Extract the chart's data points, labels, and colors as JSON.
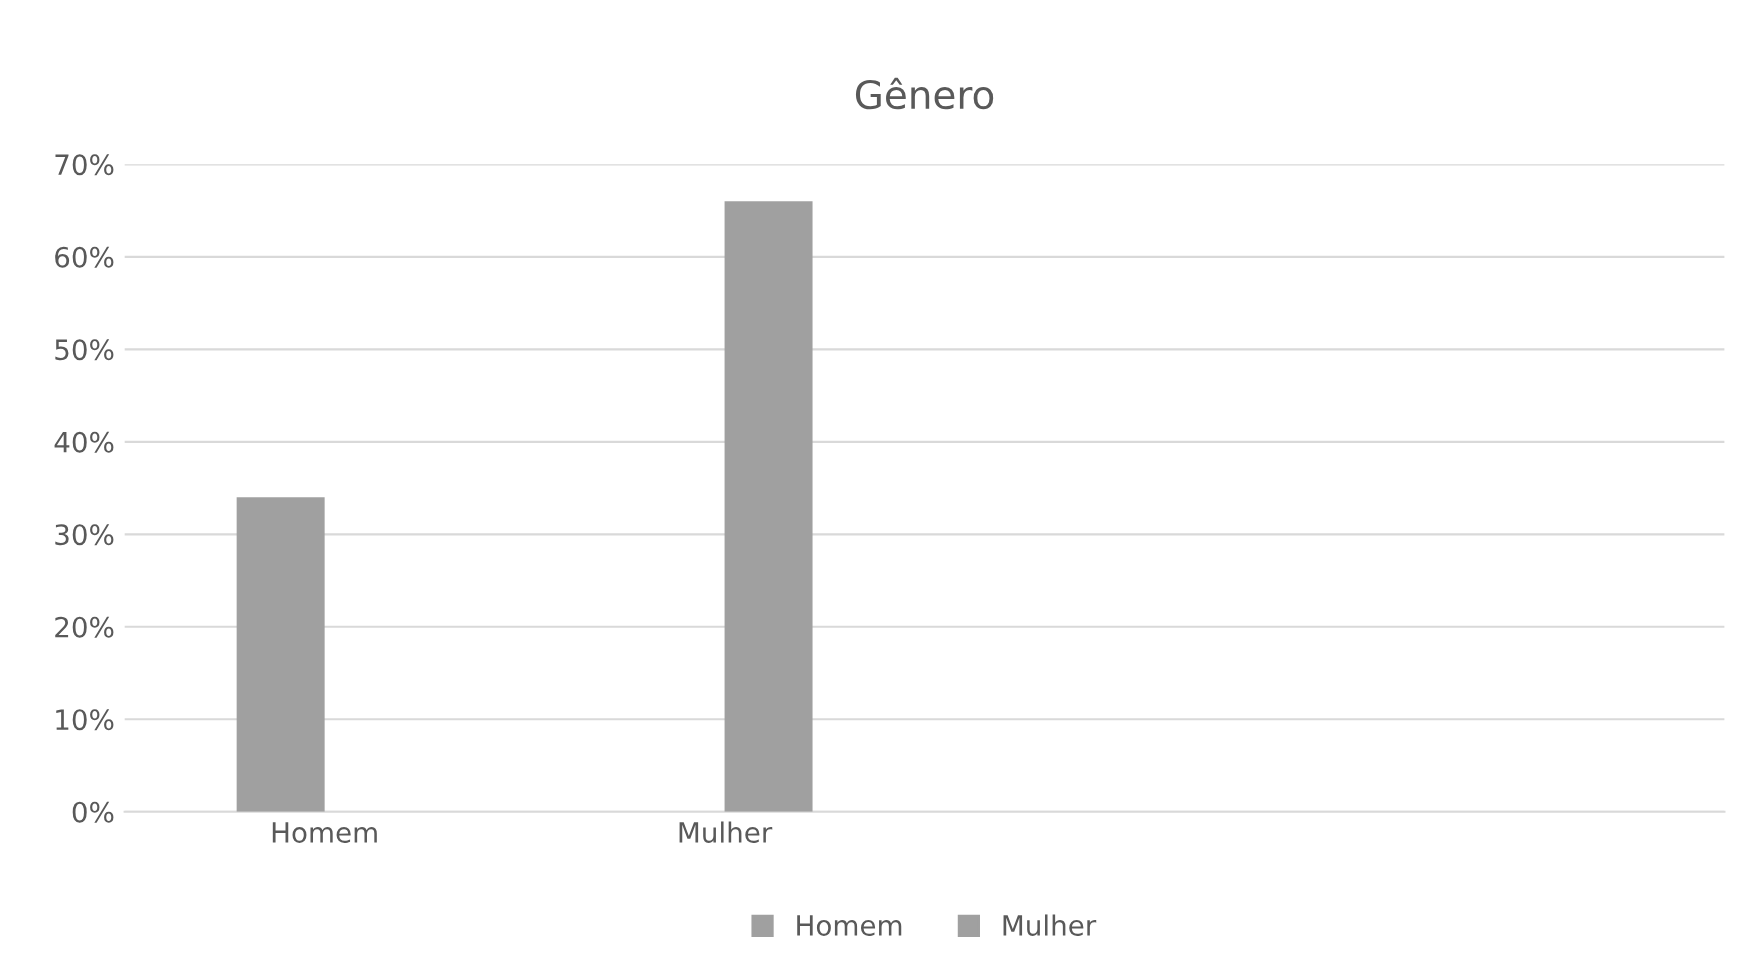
{
  "chart_data": {
    "type": "bar",
    "title": "Gênero",
    "categories": [
      "Homem",
      "Mulher",
      null,
      null
    ],
    "series": [
      {
        "name": "Homem",
        "color": "#a0a0a0",
        "values": [
          34,
          null,
          null,
          null
        ]
      },
      {
        "name": "Mulher",
        "color": "#a0a0a0",
        "values": [
          null,
          66,
          null,
          null
        ]
      }
    ],
    "ylim": [
      0,
      70
    ],
    "yticks": [
      {
        "value": 0,
        "label": "0%"
      },
      {
        "value": 10,
        "label": "10%"
      },
      {
        "value": 20,
        "label": "20%"
      },
      {
        "value": 30,
        "label": "30%"
      },
      {
        "value": 40,
        "label": "40%"
      },
      {
        "value": 50,
        "label": "50%"
      },
      {
        "value": 60,
        "label": "60%"
      },
      {
        "value": 70,
        "label": "70%"
      }
    ],
    "grid": "y",
    "legend": "bottom"
  }
}
